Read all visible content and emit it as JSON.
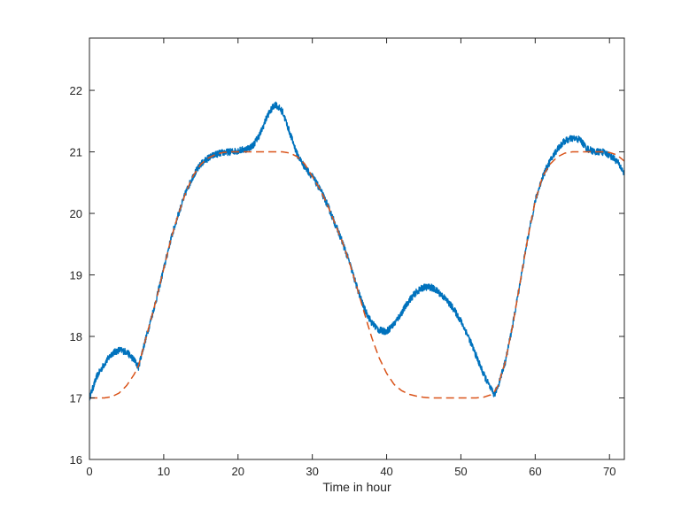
{
  "chart_data": {
    "type": "line",
    "xlabel": "Time in hour",
    "ylabel": "",
    "title": "",
    "xlim": [
      0,
      72
    ],
    "ylim": [
      16,
      22.85
    ],
    "grid": false,
    "legend": "none",
    "xticks": [
      0,
      10,
      20,
      30,
      40,
      50,
      60,
      70
    ],
    "yticks": [
      16,
      17,
      18,
      19,
      20,
      21,
      22
    ],
    "series": [
      {
        "style": "solid-noisy",
        "color": "#0072BD",
        "x": [
          0,
          1,
          2,
          3,
          4,
          5,
          6,
          6.6,
          7,
          8,
          9,
          10,
          11,
          12,
          13,
          14,
          15,
          16,
          17,
          18,
          19,
          20,
          21,
          22,
          23,
          24,
          25,
          26,
          27,
          28,
          29,
          30,
          31,
          32,
          33,
          34,
          35,
          36,
          37,
          38,
          39,
          40,
          41,
          42,
          43,
          44,
          45,
          46,
          47,
          48,
          49,
          50,
          51,
          52,
          53,
          54,
          54.5,
          55,
          56,
          57,
          58,
          59,
          60,
          61,
          62,
          63,
          64,
          65,
          66,
          67,
          68,
          69,
          70,
          71,
          72
        ],
        "y": [
          17.0,
          17.35,
          17.55,
          17.72,
          17.78,
          17.75,
          17.62,
          17.5,
          17.7,
          18.15,
          18.6,
          19.1,
          19.6,
          20.0,
          20.35,
          20.62,
          20.8,
          20.9,
          20.96,
          20.99,
          21.0,
          21.02,
          21.04,
          21.1,
          21.3,
          21.6,
          21.78,
          21.65,
          21.3,
          20.95,
          20.75,
          20.6,
          20.4,
          20.15,
          19.85,
          19.55,
          19.2,
          18.8,
          18.45,
          18.22,
          18.1,
          18.08,
          18.2,
          18.38,
          18.58,
          18.72,
          18.8,
          18.8,
          18.72,
          18.6,
          18.45,
          18.25,
          18.0,
          17.7,
          17.4,
          17.15,
          17.05,
          17.2,
          17.6,
          18.2,
          18.9,
          19.6,
          20.2,
          20.6,
          20.85,
          21.05,
          21.18,
          21.22,
          21.2,
          21.05,
          21.0,
          21.0,
          20.95,
          20.85,
          20.65
        ]
      },
      {
        "style": "dashed",
        "color": "#D95319",
        "x": [
          0,
          1,
          2,
          3,
          4,
          5,
          6,
          6.6,
          7,
          8,
          9,
          10,
          11,
          12,
          13,
          14,
          15,
          16,
          17,
          18,
          19,
          20,
          21,
          22,
          23,
          24,
          25,
          26,
          27,
          28,
          29,
          30,
          31,
          32,
          33,
          34,
          35,
          36,
          37,
          38,
          39,
          40,
          41,
          42,
          43,
          44,
          45,
          46,
          47,
          48,
          49,
          50,
          51,
          52,
          53,
          54,
          54.5,
          55,
          56,
          57,
          58,
          59,
          60,
          61,
          62,
          63,
          64,
          65,
          66,
          67,
          68,
          69,
          70,
          71,
          72
        ],
        "y": [
          17.0,
          17.0,
          17.0,
          17.02,
          17.08,
          17.2,
          17.38,
          17.52,
          17.7,
          18.15,
          18.6,
          19.1,
          19.6,
          20.0,
          20.35,
          20.62,
          20.8,
          20.9,
          20.96,
          20.99,
          21.0,
          21.0,
          21.0,
          21.0,
          21.0,
          21.0,
          21.0,
          21.0,
          20.98,
          20.92,
          20.8,
          20.6,
          20.4,
          20.15,
          19.85,
          19.55,
          19.2,
          18.8,
          18.38,
          17.98,
          17.65,
          17.4,
          17.22,
          17.12,
          17.06,
          17.03,
          17.01,
          17.0,
          17.0,
          17.0,
          17.0,
          17.0,
          17.0,
          17.0,
          17.01,
          17.05,
          17.1,
          17.2,
          17.6,
          18.2,
          18.9,
          19.6,
          20.2,
          20.6,
          20.8,
          20.92,
          20.98,
          21.0,
          21.0,
          21.0,
          21.0,
          21.0,
          20.99,
          20.95,
          20.85
        ]
      }
    ]
  }
}
